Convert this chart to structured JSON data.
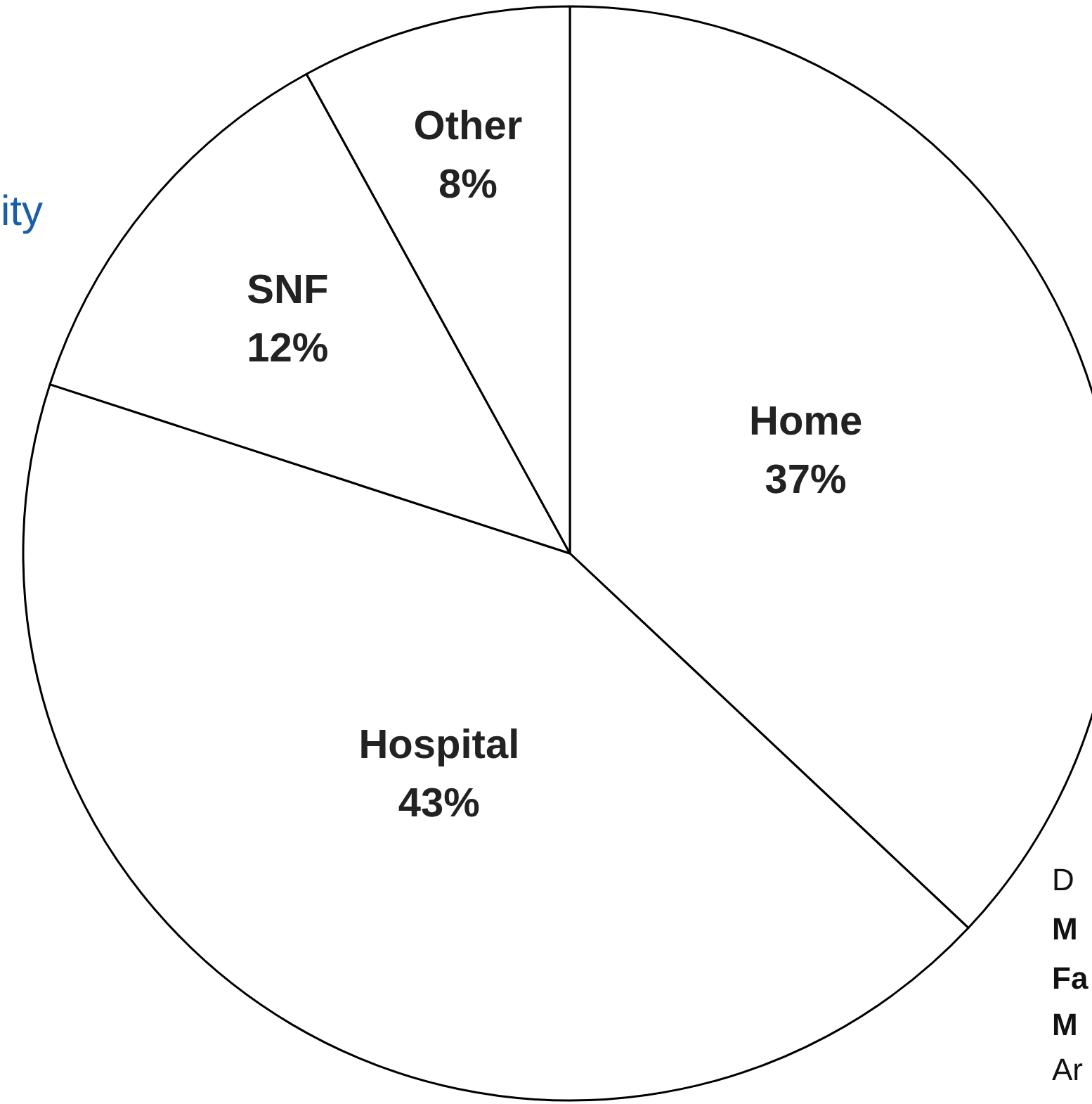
{
  "chart_data": {
    "type": "pie",
    "categories": [
      "Home",
      "Hospital",
      "SNF",
      "Other"
    ],
    "values": [
      37,
      43,
      12,
      8
    ],
    "value_labels": [
      "37%",
      "43%",
      "12%",
      "8%"
    ],
    "colors": [
      "#ffffff",
      "#ffffff",
      "#ffffff",
      "#ffffff"
    ],
    "annotations": [
      "ity",
      "D",
      "M",
      "Fa",
      "M",
      "Ar"
    ]
  }
}
